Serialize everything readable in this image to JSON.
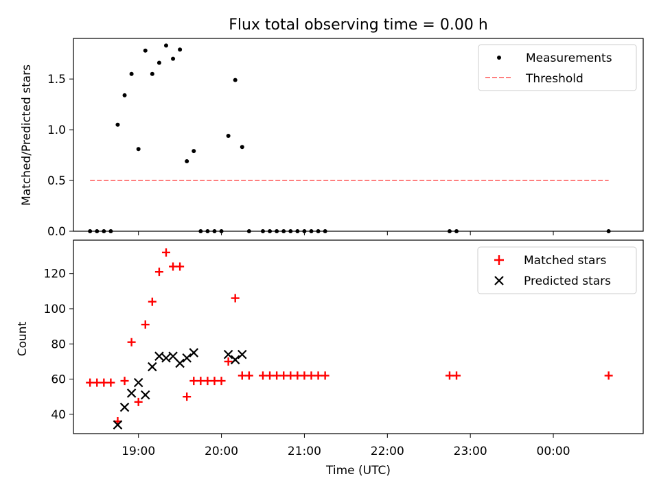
{
  "title": "Flux total observing time = 0.00 h",
  "xlabel": "Time (UTC)",
  "x_tick_labels": [
    "19:00",
    "20:00",
    "21:00",
    "22:00",
    "23:00",
    "00:00"
  ],
  "colors": {
    "measurements": "#000000",
    "threshold": "#ff7f7f",
    "matched": "#ff0000",
    "predicted": "#000000"
  },
  "chart_data": [
    {
      "type": "scatter",
      "ylabel": "Matched/Predicted stars",
      "ylim": [
        0,
        1.9
      ],
      "xlim": [
        "18:13",
        "01:05"
      ],
      "y_ticks": [
        "0.0",
        "0.5",
        "1.0",
        "1.5"
      ],
      "legend_position": "top-right",
      "series": [
        {
          "name": "Measurements",
          "marker": "dot",
          "x": [
            "18:25",
            "18:30",
            "18:35",
            "18:40",
            "18:45",
            "18:50",
            "18:55",
            "19:00",
            "19:05",
            "19:10",
            "19:15",
            "19:20",
            "19:25",
            "19:30",
            "19:35",
            "19:40",
            "19:45",
            "19:50",
            "19:55",
            "20:00",
            "20:05",
            "20:10",
            "20:15",
            "20:20",
            "20:30",
            "20:35",
            "20:40",
            "20:45",
            "20:50",
            "20:55",
            "21:00",
            "21:05",
            "21:10",
            "21:15",
            "22:45",
            "22:50",
            "00:40"
          ],
          "values": [
            0,
            0,
            0,
            0,
            1.05,
            1.34,
            1.55,
            0.81,
            1.78,
            1.55,
            1.66,
            1.83,
            1.7,
            1.79,
            0.69,
            0.79,
            0,
            0,
            0,
            0,
            0.94,
            1.49,
            0.83,
            0,
            0,
            0,
            0,
            0,
            0,
            0,
            0,
            0,
            0,
            0,
            0,
            0,
            0
          ]
        },
        {
          "name": "Threshold",
          "type": "line",
          "style": "dashed",
          "x": [
            "18:25",
            "00:40"
          ],
          "values": [
            0.5,
            0.5
          ]
        }
      ]
    },
    {
      "type": "scatter",
      "ylabel": "Count",
      "ylim": [
        29,
        139
      ],
      "y_ticks": [
        "40",
        "60",
        "80",
        "100",
        "120"
      ],
      "legend_position": "top-right",
      "series": [
        {
          "name": "Matched stars",
          "marker": "plus",
          "x": [
            "18:25",
            "18:30",
            "18:35",
            "18:40",
            "18:45",
            "18:50",
            "18:55",
            "19:00",
            "19:05",
            "19:10",
            "19:15",
            "19:20",
            "19:25",
            "19:30",
            "19:35",
            "19:40",
            "19:45",
            "19:50",
            "19:55",
            "20:00",
            "20:05",
            "20:10",
            "20:15",
            "20:20",
            "20:30",
            "20:35",
            "20:40",
            "20:45",
            "20:50",
            "20:55",
            "21:00",
            "21:05",
            "21:10",
            "21:15",
            "22:45",
            "22:50",
            "00:40"
          ],
          "values": [
            58,
            58,
            58,
            58,
            36,
            59,
            81,
            47,
            91,
            104,
            121,
            132,
            124,
            124,
            50,
            59,
            59,
            59,
            59,
            59,
            70,
            106,
            62,
            62,
            62,
            62,
            62,
            62,
            62,
            62,
            62,
            62,
            62,
            62,
            62,
            62,
            62
          ]
        },
        {
          "name": "Predicted stars",
          "marker": "x",
          "x": [
            "18:45",
            "18:50",
            "18:55",
            "19:00",
            "19:05",
            "19:10",
            "19:15",
            "19:20",
            "19:25",
            "19:30",
            "19:35",
            "19:40",
            "20:05",
            "20:10",
            "20:15"
          ],
          "values": [
            34,
            44,
            52,
            58,
            51,
            67,
            73,
            72,
            73,
            69,
            72,
            75,
            74,
            71,
            74
          ]
        }
      ]
    }
  ]
}
